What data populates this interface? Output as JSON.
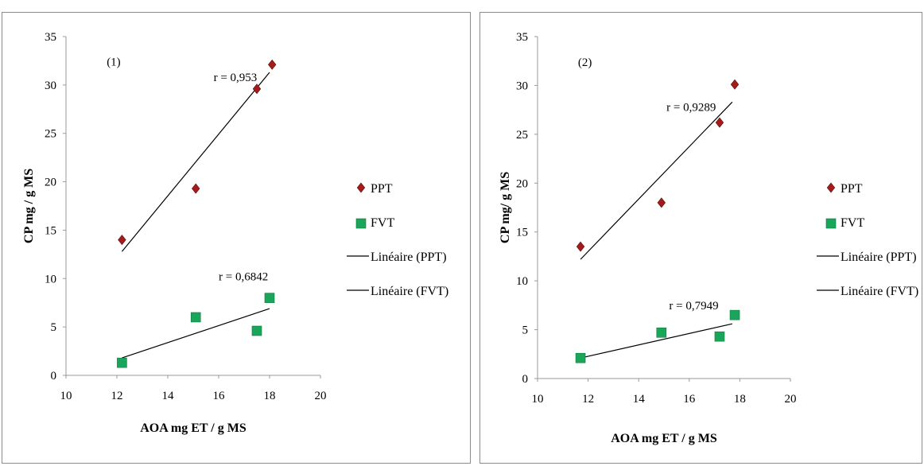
{
  "colors": {
    "ppt": "#a51b1b",
    "fvt": "#1aa65a",
    "fit": "#000000",
    "axis": "#9a9a9a"
  },
  "chart_data": [
    {
      "type": "scatter",
      "panel_label": "(1)",
      "xlabel": "AOA mg ET / g MS",
      "ylabel": "CP mg / g MS",
      "xlim": [
        10,
        20
      ],
      "ylim": [
        0,
        35
      ],
      "xticks": [
        "10",
        "12",
        "14",
        "16",
        "18",
        "20"
      ],
      "yticks": [
        "0",
        "5",
        "10",
        "15",
        "20",
        "25",
        "30",
        "35"
      ],
      "series": [
        {
          "name": "PPT",
          "marker": "diamond",
          "x": [
            12.2,
            15.1,
            17.5,
            18.1
          ],
          "y": [
            14.0,
            19.3,
            29.6,
            32.1
          ]
        },
        {
          "name": "FVT",
          "marker": "square",
          "x": [
            12.2,
            15.1,
            17.5,
            18.0
          ],
          "y": [
            1.3,
            6.0,
            4.6,
            8.0
          ]
        }
      ],
      "trendlines": [
        {
          "name": "Linéaire (PPT)",
          "x": [
            12.2,
            18.0
          ],
          "y": [
            12.8,
            31.3
          ],
          "r_label": "r = 0,953",
          "r_pos": [
            15.8,
            30.4
          ]
        },
        {
          "name": "Linéaire (FVT)",
          "x": [
            12.2,
            18.0
          ],
          "y": [
            1.8,
            6.9
          ],
          "r_label": "r = 0,6842",
          "r_pos": [
            16.0,
            9.8
          ]
        }
      ],
      "legend": [
        "PPT",
        "FVT",
        "Linéaire (PPT)",
        "Linéaire (FVT)"
      ],
      "legend_position": "right"
    },
    {
      "type": "scatter",
      "panel_label": "(2)",
      "xlabel": "AOA mg ET / g MS",
      "ylabel": "CP mg/ g MS",
      "xlim": [
        10,
        20
      ],
      "ylim": [
        0,
        35
      ],
      "xticks": [
        "10",
        "12",
        "14",
        "16",
        "18",
        "20"
      ],
      "yticks": [
        "0",
        "5",
        "10",
        "15",
        "20",
        "25",
        "30",
        "35"
      ],
      "series": [
        {
          "name": "PPT",
          "marker": "diamond",
          "x": [
            11.7,
            14.9,
            17.2,
            17.8
          ],
          "y": [
            13.5,
            18.0,
            26.2,
            30.1
          ]
        },
        {
          "name": "FVT",
          "marker": "square",
          "x": [
            11.7,
            14.9,
            17.2,
            17.8
          ],
          "y": [
            2.1,
            4.7,
            4.3,
            6.5
          ]
        }
      ],
      "trendlines": [
        {
          "name": "Linéaire (PPT)",
          "x": [
            11.7,
            17.7
          ],
          "y": [
            12.2,
            28.3
          ],
          "r_label": "r = 0,9289",
          "r_pos": [
            15.1,
            27.4
          ]
        },
        {
          "name": "Linéaire (FVT)",
          "x": [
            11.7,
            17.7
          ],
          "y": [
            2.1,
            5.6
          ],
          "r_label": "r = 0,7949",
          "r_pos": [
            15.2,
            7.1
          ]
        }
      ],
      "legend": [
        "PPT",
        "FVT",
        "Linéaire (PPT)",
        "Linéaire (FVT)"
      ],
      "legend_position": "right"
    }
  ]
}
